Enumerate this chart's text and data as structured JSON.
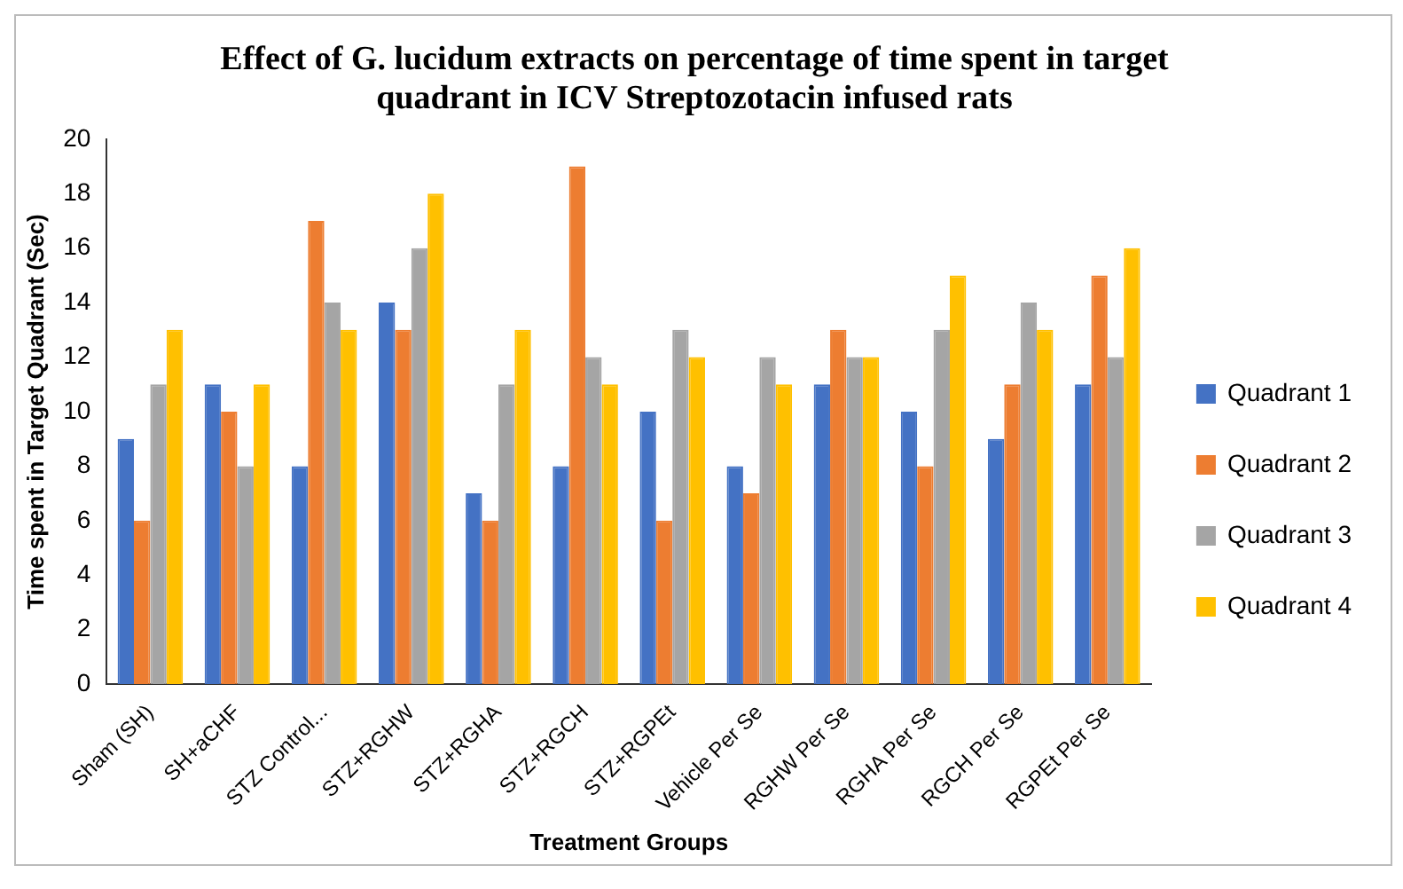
{
  "chart_data": {
    "type": "bar",
    "title": "Effect of G. lucidum extracts on percentage of time spent in target quadrant in ICV Streptozotacin infused rats",
    "xlabel": "Treatment Groups",
    "ylabel": "Time spent in Target Quadrant (Sec)",
    "categories": [
      "Sham (SH)",
      "SH+aCHF",
      "STZ Control...",
      "STZ+RGHW",
      "STZ+RGHA",
      "STZ+RGCH",
      "STZ+RGPEt",
      "Vehicle Per Se",
      "RGHW Per Se",
      "RGHA Per Se",
      "RGCH Per Se",
      "RGPEt Per Se"
    ],
    "series": [
      {
        "name": "Quadrant 1",
        "color": "#4472c4",
        "values": [
          9,
          11,
          8,
          14,
          7,
          8,
          10,
          8,
          11,
          10,
          9,
          11
        ]
      },
      {
        "name": "Quadrant 2",
        "color": "#ed7d31",
        "values": [
          6,
          10,
          17,
          13,
          6,
          19,
          6,
          7,
          13,
          8,
          11,
          15
        ]
      },
      {
        "name": "Quadrant 3",
        "color": "#a5a5a5",
        "values": [
          11,
          8,
          14,
          16,
          11,
          12,
          13,
          12,
          12,
          13,
          14,
          12
        ]
      },
      {
        "name": "Quadrant 4",
        "color": "#ffc000",
        "values": [
          13,
          11,
          13,
          18,
          13,
          11,
          12,
          11,
          12,
          15,
          13,
          16
        ]
      }
    ],
    "ylim": [
      0,
      20
    ],
    "yticks": [
      0,
      2,
      4,
      6,
      8,
      10,
      12,
      14,
      16,
      18,
      20
    ],
    "grid": false,
    "legend": "right"
  }
}
